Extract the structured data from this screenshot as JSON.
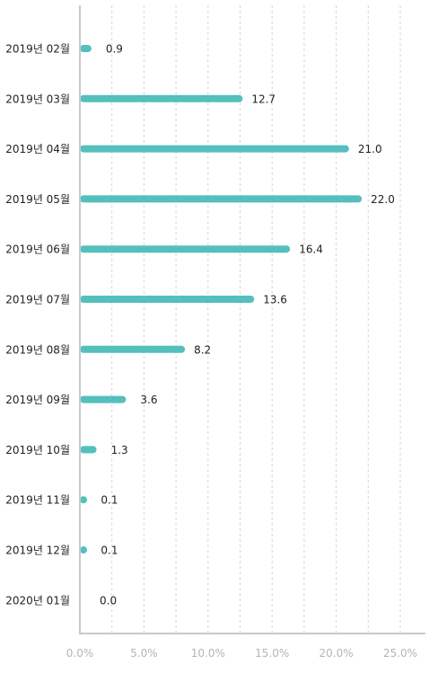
{
  "chart_data": {
    "type": "bar",
    "orientation": "horizontal",
    "categories": [
      "2019년 02월",
      "2019년 03월",
      "2019년 04월",
      "2019년 05월",
      "2019년 06월",
      "2019년 07월",
      "2019년 08월",
      "2019년 09월",
      "2019년 10월",
      "2019년 11월",
      "2019년 12월",
      "2020년 01월"
    ],
    "values": [
      0.9,
      12.7,
      21.0,
      22.0,
      16.4,
      13.6,
      8.2,
      3.6,
      1.3,
      0.1,
      0.1,
      0.0
    ],
    "value_labels": [
      "0.9",
      "12.7",
      "21.0",
      "22.0",
      "16.4",
      "13.6",
      "8.2",
      "3.6",
      "1.3",
      "0.1",
      "0.1",
      "0.0"
    ],
    "x_ticks": [
      "0.0%",
      "5.0%",
      "10.0%",
      "15.0%",
      "20.0%",
      "25.0%"
    ],
    "xlim": [
      0,
      27.5
    ],
    "title": "",
    "xlabel": "",
    "ylabel": "",
    "grid": true,
    "legend": "none",
    "colors": {
      "bar": "#55bfbd",
      "grid": "#d6d6d6",
      "axis": "#c8c8c8"
    }
  }
}
